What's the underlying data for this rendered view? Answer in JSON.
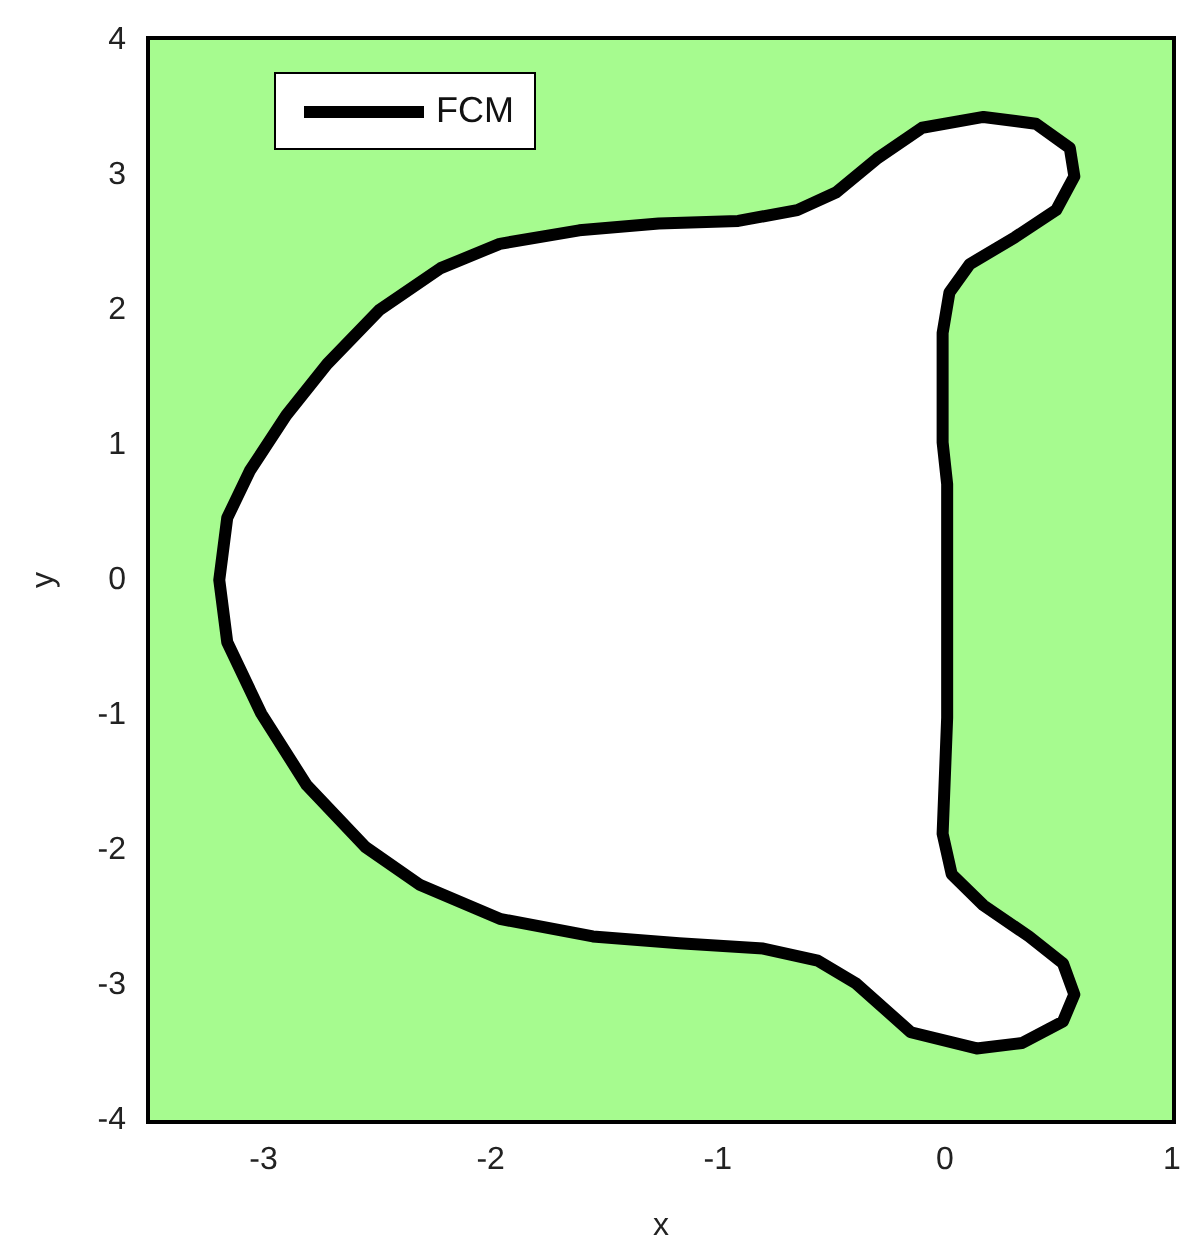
{
  "chart_data": {
    "type": "area",
    "xlabel": "x",
    "ylabel": "y",
    "xlim": [
      -3.5,
      1
    ],
    "xticks": [
      -3,
      -2,
      -1,
      0,
      1
    ],
    "ylim": [
      -4,
      4
    ],
    "yticks": [
      -4,
      -3,
      -2,
      -1,
      0,
      1,
      2,
      3,
      4
    ],
    "grid": false,
    "legend": "top left",
    "line_style": "solid",
    "bands": [
      {
        "axis": "x",
        "from": -3.5,
        "to": 1,
        "color": "#a6fb8f"
      }
    ],
    "series": [
      {
        "name": "FCM",
        "color": "#000000",
        "x": [
          -3.195,
          -3.16,
          -3.06,
          -2.9,
          -2.72,
          -2.49,
          -2.22,
          -1.96,
          -1.61,
          -1.26,
          -0.91,
          -0.65,
          -0.48,
          -0.3,
          -0.1,
          0.17,
          0.4,
          0.55,
          0.57,
          0.49,
          0.31,
          0.11,
          0.02,
          -0.01,
          -0.01,
          0.01,
          0.01,
          0.01,
          -0.01,
          0.03,
          0.17,
          0.37,
          0.52,
          0.57,
          0.52,
          0.34,
          0.14,
          -0.15,
          -0.39,
          -0.56,
          -0.8,
          -1.17,
          -1.55,
          -1.96,
          -2.31,
          -2.55,
          -2.81,
          -3.01,
          -3.16,
          -3.195
        ],
        "values": [
          0,
          0.46,
          0.81,
          1.22,
          1.6,
          2.0,
          2.31,
          2.49,
          2.59,
          2.64,
          2.66,
          2.74,
          2.87,
          3.12,
          3.35,
          3.43,
          3.38,
          3.2,
          2.99,
          2.74,
          2.54,
          2.34,
          2.13,
          1.83,
          1.02,
          0.71,
          0,
          -1.02,
          -1.88,
          -2.18,
          -2.41,
          -2.64,
          -2.84,
          -3.07,
          -3.27,
          -3.43,
          -3.47,
          -3.35,
          -2.99,
          -2.82,
          -2.73,
          -2.69,
          -2.64,
          -2.51,
          -2.26,
          -1.98,
          -1.52,
          -0.99,
          -0.46,
          0
        ]
      }
    ]
  }
}
